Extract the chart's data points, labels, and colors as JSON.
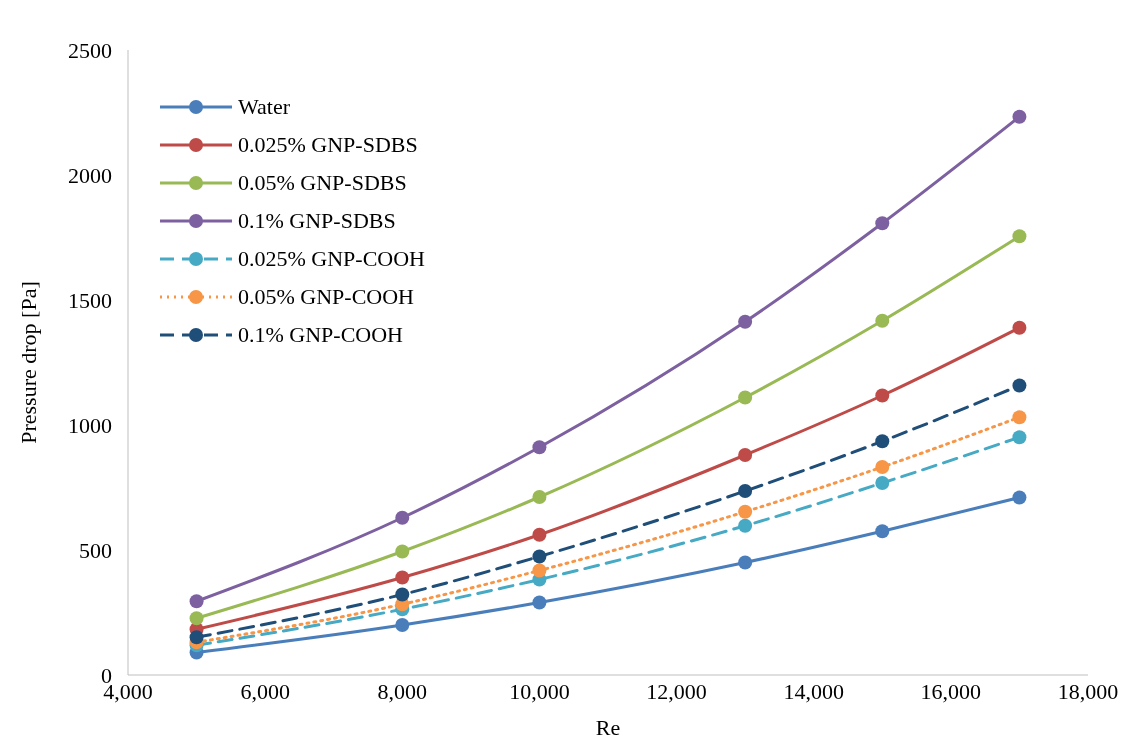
{
  "chart_data": {
    "type": "line",
    "xlabel": "Re",
    "ylabel": "Pressure drop [Pa]",
    "x": [
      5000,
      8000,
      10000,
      13000,
      15000,
      17000
    ],
    "xlim": [
      4000,
      18000
    ],
    "xticks": [
      {
        "value": 4000,
        "label": "4,000"
      },
      {
        "value": 6000,
        "label": "6,000"
      },
      {
        "value": 8000,
        "label": "8,000"
      },
      {
        "value": 10000,
        "label": "10,000"
      },
      {
        "value": 12000,
        "label": "12,000"
      },
      {
        "value": 14000,
        "label": "14,000"
      },
      {
        "value": 16000,
        "label": "16,000"
      },
      {
        "value": 18000,
        "label": "18,000"
      }
    ],
    "ylim": [
      0,
      2500
    ],
    "yticks": [
      0,
      500,
      1000,
      1500,
      2000,
      2500
    ],
    "grid": false,
    "legend": "top left",
    "marker": "circle",
    "series": [
      {
        "name": "Water",
        "color": "#4a7ebb",
        "line_style": "solid",
        "values": [
          90,
          200,
          290,
          450,
          575,
          710
        ]
      },
      {
        "name": "0.025% GNP-SDBS",
        "color": "#be4b48",
        "line_style": "solid",
        "values": [
          183,
          390,
          561,
          880,
          1118,
          1389
        ]
      },
      {
        "name": "0.05% GNP-SDBS",
        "color": "#98b954",
        "line_style": "solid",
        "values": [
          227,
          494,
          712,
          1110,
          1417,
          1755
        ]
      },
      {
        "name": "0.1% GNP-SDBS",
        "color": "#7d60a0",
        "line_style": "solid",
        "values": [
          295,
          629,
          911,
          1413,
          1807,
          2233
        ]
      },
      {
        "name": "0.025% GNP-COOH",
        "color": "#46aac5",
        "line_style": "dashed",
        "values": [
          119,
          263,
          382,
          597,
          768,
          951
        ]
      },
      {
        "name": "0.05% GNP-COOH",
        "color": "#f79646",
        "line_style": "dotted",
        "values": [
          131,
          283,
          418,
          653,
          832,
          1031
        ]
      },
      {
        "name": "0.1% GNP-COOH",
        "color": "#1f4e79",
        "line_style": "dashed",
        "values": [
          151,
          322,
          474,
          736,
          935,
          1158
        ]
      }
    ]
  }
}
